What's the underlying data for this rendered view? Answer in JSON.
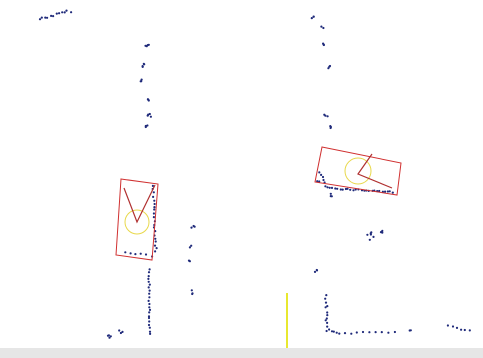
{
  "viewer": {
    "background_color": "#ffffff",
    "point_color": "#1f2a7a",
    "box_color": "#d03030",
    "heading_color": "#c83030",
    "circle_color": "#e8d84a",
    "axis_color": "#e8e830",
    "status_bar_color": "#e6e6e6"
  },
  "detections": [
    {
      "id": "detection-left"
    },
    {
      "id": "detection-right"
    }
  ]
}
